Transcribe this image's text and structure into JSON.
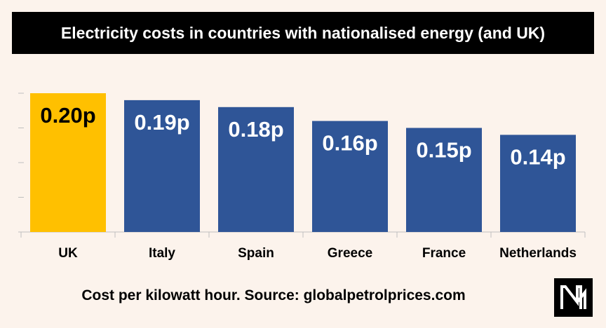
{
  "chart_data": {
    "type": "bar",
    "title": "Electricity costs in countries with nationalised energy (and UK)",
    "categories": [
      "UK",
      "Italy",
      "Spain",
      "Greece",
      "France",
      "Netherlands"
    ],
    "values": [
      0.2,
      0.19,
      0.18,
      0.16,
      0.15,
      0.14
    ],
    "data_labels": [
      "0.20p",
      "0.19p",
      "0.18p",
      "0.16p",
      "0.15p",
      "0.14p"
    ],
    "ylim": [
      0,
      0.2
    ],
    "grid": false,
    "colors": [
      "#ffc000",
      "#2f5597",
      "#2f5597",
      "#2f5597",
      "#2f5597",
      "#2f5597"
    ],
    "label_colors": [
      "#000000",
      "#ffffff",
      "#ffffff",
      "#ffffff",
      "#ffffff",
      "#ffffff"
    ]
  },
  "footer": {
    "source": "Cost per kilowatt hour. Source: globalpetrolprices.com"
  },
  "logo": {
    "icon": "nm-logo-icon"
  }
}
